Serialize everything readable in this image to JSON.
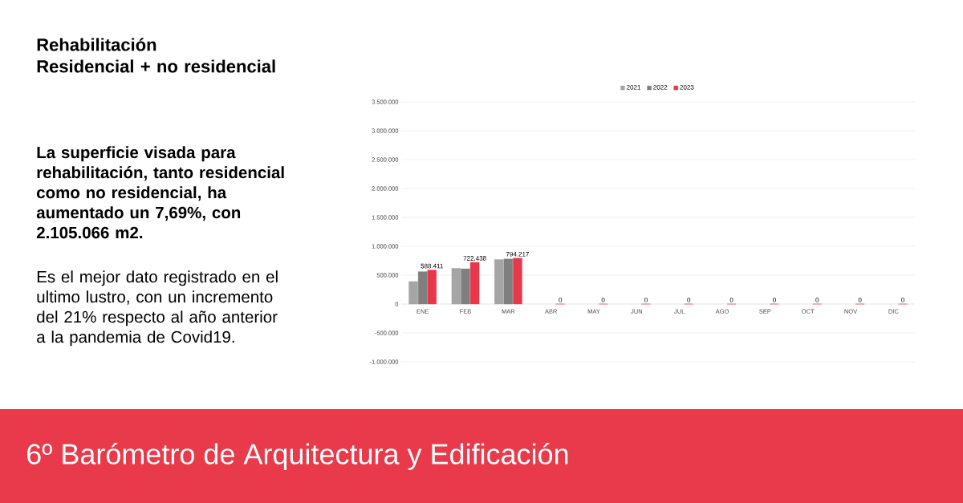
{
  "chart_data": {
    "type": "bar",
    "title": "Rehabilitación",
    "subtitle": "Residencial + no residencial",
    "annotations": [
      "La superficie visada para rehabilitación, tanto residencial como no residencial, ha aumentado un 7,69%, con 2.105.066 m2.",
      "Es el mejor dato registrado en el ultimo lustro, con un incremento del 21% respecto al año anterior a la pandemia de Covid19.",
      "6º Barómetro de Arquitectura y Edificación"
    ],
    "categories": [
      "ENE",
      "FEB",
      "MAR",
      "ABR",
      "MAY",
      "JUN",
      "JUL",
      "AGO",
      "SEP",
      "OCT",
      "NOV",
      "DIC"
    ],
    "series": [
      {
        "name": "2021",
        "color": "#a5a5a5",
        "values": [
          390000,
          620000,
          770000,
          null,
          null,
          null,
          null,
          null,
          null,
          null,
          null,
          null
        ]
      },
      {
        "name": "2022",
        "color": "#7f7f7f",
        "values": [
          560000,
          610000,
          780000,
          null,
          null,
          null,
          null,
          null,
          null,
          null,
          null,
          null
        ]
      },
      {
        "name": "2023",
        "color": "#e8374a",
        "values": [
          588411,
          722438,
          794217,
          0,
          0,
          0,
          0,
          0,
          0,
          0,
          0,
          0
        ],
        "value_labels": [
          "588.411",
          "722.438",
          "794.217",
          "0",
          "0",
          "0",
          "0",
          "0",
          "0",
          "0",
          "0",
          "0"
        ]
      }
    ],
    "ylim": [
      -1000000,
      3500000
    ],
    "yticks": [
      {
        "value": -1000000,
        "label": "-1.000.000"
      },
      {
        "value": -500000,
        "label": "-500.000"
      },
      0,
      {
        "value": 500000,
        "label": "500.000"
      },
      {
        "value": 1000000,
        "label": "1.000.000"
      },
      {
        "value": 1500000,
        "label": "1.500.000"
      },
      {
        "value": 2000000,
        "label": "2.000.000"
      },
      {
        "value": 2500000,
        "label": "2.500.000"
      },
      {
        "value": 3000000,
        "label": "3.000.000"
      },
      {
        "value": 3500000,
        "label": "3.500.000"
      }
    ],
    "grid": "y",
    "legend": "top"
  }
}
